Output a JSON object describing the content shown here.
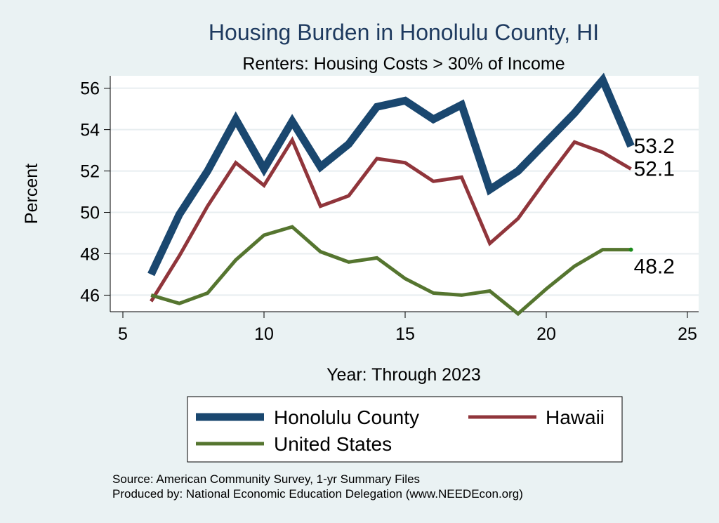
{
  "chart_data": {
    "type": "line",
    "title": "Housing Burden in Honolulu County, HI",
    "subtitle": "Renters: Housing Costs > 30% of Income",
    "xlabel": "Year: Through 2023",
    "ylabel": "Percent",
    "xlim": [
      5,
      25
    ],
    "ylim": [
      45.2,
      56.6
    ],
    "xticks": [
      5,
      10,
      15,
      20,
      25
    ],
    "yticks": [
      46,
      48,
      50,
      52,
      54,
      56
    ],
    "grid": true,
    "legend_position": "bottom",
    "x": [
      6,
      7,
      8,
      9,
      10,
      11,
      12,
      13,
      14,
      15,
      16,
      17,
      18,
      19,
      20,
      21,
      22,
      23
    ],
    "series": [
      {
        "name": "Honolulu County",
        "color": "#1a476f",
        "values": [
          47.0,
          49.9,
          52.0,
          54.5,
          52.1,
          54.4,
          52.2,
          53.3,
          55.1,
          55.4,
          54.5,
          55.2,
          51.1,
          52.0,
          53.4,
          54.8,
          56.4,
          53.2
        ],
        "end_label": "53.2"
      },
      {
        "name": "Hawaii",
        "color": "#90353b",
        "values": [
          45.7,
          47.9,
          50.3,
          52.4,
          51.3,
          53.5,
          50.3,
          50.8,
          52.6,
          52.4,
          51.5,
          51.7,
          48.5,
          49.7,
          51.6,
          53.4,
          52.9,
          52.1
        ],
        "end_label": "52.1"
      },
      {
        "name": "United States",
        "color": "#55752f",
        "values": [
          46.0,
          45.6,
          46.1,
          47.7,
          48.9,
          49.3,
          48.1,
          47.6,
          47.8,
          46.8,
          46.1,
          46.0,
          46.2,
          45.1,
          46.3,
          47.4,
          48.2,
          48.2
        ],
        "end_label": "48.2"
      }
    ],
    "notes": [
      "Source: American Community Survey, 1-yr Summary Files",
      "Produced by: National Economic Education Delegation (www.NEEDEcon.org)"
    ]
  }
}
